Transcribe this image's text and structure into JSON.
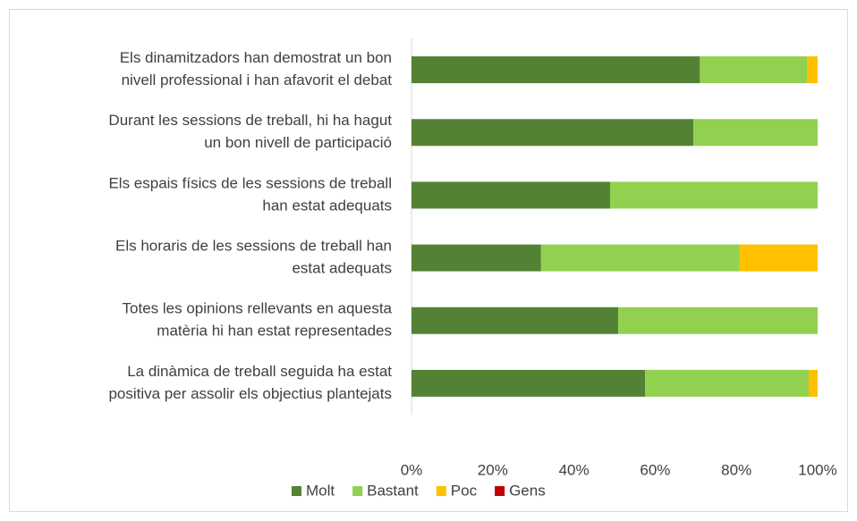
{
  "chart_data": {
    "type": "stacked-barh",
    "categories": [
      [
        "Els dinamitzadors han demostrat un bon",
        "nivell professional i han afavorit el debat"
      ],
      [
        "Durant les sessions de treball, hi ha hagut",
        "un bon nivell de participació"
      ],
      [
        "Els espais físics de les sessions de treball",
        "han estat adequats"
      ],
      [
        "Els horaris de les sessions de treball han",
        "estat adequats"
      ],
      [
        "Totes les opinions rellevants en aquesta",
        "matèria hi han estat representades"
      ],
      [
        "La dinàmica de treball seguida ha estat",
        "positiva per assolir els objectius plantejats"
      ]
    ],
    "series": [
      {
        "name": "Molt",
        "color": "#548235",
        "values": [
          71,
          69.4,
          48.9,
          31.9,
          50.9,
          57.5
        ]
      },
      {
        "name": "Bastant",
        "color": "#92d050",
        "values": [
          26.5,
          30.6,
          51.1,
          48.9,
          49.1,
          40.3
        ]
      },
      {
        "name": "Poc",
        "color": "#ffc000",
        "values": [
          2.5,
          0,
          0,
          19.2,
          0,
          2.2
        ]
      },
      {
        "name": "Gens",
        "color": "#c00000",
        "values": [
          0,
          0,
          0,
          0,
          0,
          0
        ]
      }
    ],
    "xlim": [
      0,
      100
    ],
    "xticks": [
      {
        "value": 0,
        "label": "0%"
      },
      {
        "value": 20,
        "label": "20%"
      },
      {
        "value": 40,
        "label": "40%"
      },
      {
        "value": 60,
        "label": "60%"
      },
      {
        "value": 80,
        "label": "80%"
      },
      {
        "value": 100,
        "label": "100%"
      }
    ],
    "legend": "bottom"
  }
}
